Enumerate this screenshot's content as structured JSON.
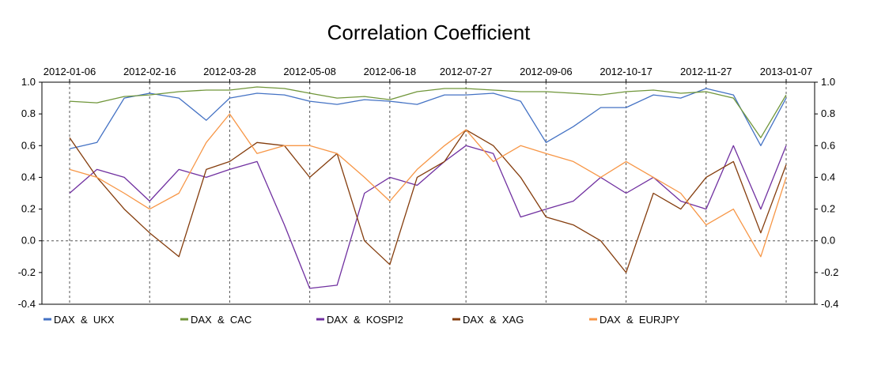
{
  "chart_data": {
    "type": "line",
    "title": "Correlation Coefficient",
    "x_ticks": [
      "2012-01-06",
      "2012-02-16",
      "2012-03-28",
      "2012-05-08",
      "2012-06-18",
      "2012-07-27",
      "2012-09-06",
      "2012-10-17",
      "2012-11-27",
      "2013-01-07"
    ],
    "y_ticks": [
      "1.0",
      "0.8",
      "0.6",
      "0.4",
      "0.2",
      "0.0",
      "-0.2",
      "-0.4"
    ],
    "ylim": [
      -0.4,
      1.0
    ],
    "grid": "vertical dashed lines at x ticks, dashed line at y = 0",
    "legend_position": "bottom",
    "x": [
      "2012-01-06",
      "2012-01-20",
      "2012-02-03",
      "2012-02-16",
      "2012-03-02",
      "2012-03-16",
      "2012-03-28",
      "2012-04-11",
      "2012-04-25",
      "2012-05-08",
      "2012-05-22",
      "2012-06-05",
      "2012-06-18",
      "2012-07-02",
      "2012-07-16",
      "2012-07-27",
      "2012-08-10",
      "2012-08-24",
      "2012-09-06",
      "2012-09-20",
      "2012-10-04",
      "2012-10-17",
      "2012-10-31",
      "2012-11-14",
      "2012-11-27",
      "2012-12-11",
      "2012-12-25",
      "2013-01-07"
    ],
    "series": [
      {
        "name": "DAX  &  UKX",
        "color": "#4472C4",
        "values": [
          0.58,
          0.62,
          0.9,
          0.93,
          0.9,
          0.76,
          0.9,
          0.93,
          0.92,
          0.88,
          0.86,
          0.89,
          0.88,
          0.86,
          0.92,
          0.92,
          0.93,
          0.88,
          0.62,
          0.72,
          0.84,
          0.84,
          0.92,
          0.9,
          0.96,
          0.92,
          0.6,
          0.9
        ]
      },
      {
        "name": "DAX  &  CAC",
        "color": "#70963A",
        "values": [
          0.88,
          0.87,
          0.91,
          0.92,
          0.94,
          0.95,
          0.95,
          0.97,
          0.96,
          0.93,
          0.9,
          0.91,
          0.89,
          0.94,
          0.96,
          0.96,
          0.95,
          0.94,
          0.94,
          0.93,
          0.92,
          0.94,
          0.95,
          0.93,
          0.94,
          0.9,
          0.65,
          0.92
        ]
      },
      {
        "name": "DAX  &  KOSPI2",
        "color": "#7030A0",
        "values": [
          0.3,
          0.45,
          0.4,
          0.25,
          0.45,
          0.4,
          0.45,
          0.5,
          0.1,
          -0.3,
          -0.28,
          0.3,
          0.4,
          0.35,
          0.5,
          0.6,
          0.55,
          0.15,
          0.2,
          0.25,
          0.4,
          0.3,
          0.4,
          0.25,
          0.2,
          0.6,
          0.2,
          0.6
        ]
      },
      {
        "name": "DAX  &  XAG",
        "color": "#843C0C",
        "values": [
          0.65,
          0.4,
          0.2,
          0.05,
          -0.1,
          0.45,
          0.5,
          0.62,
          0.6,
          0.4,
          0.55,
          0.0,
          -0.15,
          0.4,
          0.5,
          0.7,
          0.6,
          0.4,
          0.15,
          0.1,
          0.0,
          -0.2,
          0.3,
          0.2,
          0.4,
          0.5,
          0.05,
          0.48
        ]
      },
      {
        "name": "DAX  &  EURJPY",
        "color": "#F79646",
        "values": [
          0.45,
          0.4,
          0.3,
          0.2,
          0.3,
          0.62,
          0.8,
          0.55,
          0.6,
          0.6,
          0.55,
          0.4,
          0.25,
          0.45,
          0.6,
          0.7,
          0.5,
          0.6,
          0.55,
          0.5,
          0.4,
          0.5,
          0.4,
          0.3,
          0.1,
          0.2,
          -0.1,
          0.4
        ]
      }
    ]
  }
}
